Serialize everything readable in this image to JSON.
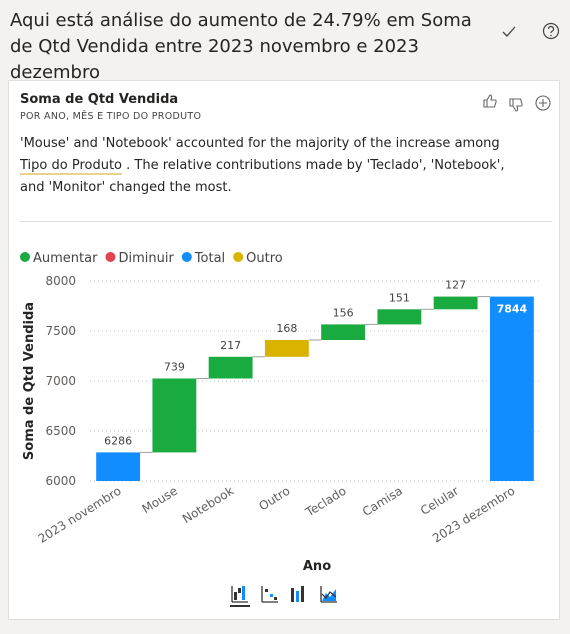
{
  "header": {
    "title": "Aqui está análise do aumento de 24.79% em Soma de Qtd Vendida entre 2023 novembro e 2023 dezembro"
  },
  "card": {
    "title": "Soma de Qtd Vendida",
    "subtitle": "POR ANO, MÊS E TIPO DO PRODUTO",
    "summary": [
      "'Mouse' and 'Notebook' accounted for the majority of the increase among ",
      "Tipo do Produto",
      " . The relative contributions made by 'Teclado', 'Notebook', and 'Monitor' changed the most."
    ]
  },
  "chart_data": {
    "type": "waterfall",
    "y_label": "Soma de Qtd Vendida",
    "x_label": "Ano",
    "categories": [
      "2023 novembro",
      "Mouse",
      "Notebook",
      "Outro",
      "Teclado",
      "Camisa",
      "Celular",
      "2023 dezembro"
    ],
    "series": [
      {
        "name": "Aumentar",
        "color": "#1aab40",
        "values": [
          null,
          739,
          217,
          null,
          156,
          151,
          127,
          null
        ]
      },
      {
        "name": "Diminuir",
        "color": "#e0444e",
        "values": [
          null,
          null,
          null,
          null,
          null,
          null,
          null,
          null
        ]
      },
      {
        "name": "Total",
        "color": "#118dff",
        "total": true,
        "values": [
          6286,
          null,
          null,
          null,
          null,
          null,
          null,
          7844
        ]
      },
      {
        "name": "Outro",
        "color": "#d9b300",
        "values": [
          null,
          null,
          null,
          168,
          null,
          null,
          null,
          null
        ]
      }
    ],
    "ylim": [
      6000,
      8000
    ],
    "yticks": [
      6000,
      6500,
      7000,
      7500,
      8000
    ],
    "grid": true
  }
}
